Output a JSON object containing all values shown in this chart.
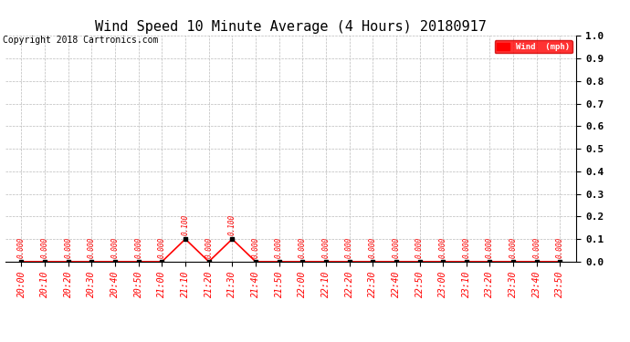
{
  "title": "Wind Speed 10 Minute Average (4 Hours) 20180917",
  "copyright": "Copyright 2018 Cartronics.com",
  "legend_label": "Wind  (mph)",
  "legend_bg": "#ff0000",
  "legend_fg": "#ffffff",
  "x_labels": [
    "20:00",
    "20:10",
    "20:20",
    "20:30",
    "20:40",
    "20:50",
    "21:00",
    "21:10",
    "21:20",
    "21:30",
    "21:40",
    "21:50",
    "22:00",
    "22:10",
    "22:20",
    "22:30",
    "22:40",
    "22:50",
    "23:00",
    "23:10",
    "23:20",
    "23:30",
    "23:40",
    "23:50"
  ],
  "y_values": [
    0.0,
    0.0,
    0.0,
    0.0,
    0.0,
    0.0,
    0.0,
    0.1,
    0.0,
    0.1,
    0.0,
    0.0,
    0.0,
    0.0,
    0.0,
    0.0,
    0.0,
    0.0,
    0.0,
    0.0,
    0.0,
    0.0,
    0.0,
    0.0
  ],
  "line_color": "#ff0000",
  "marker_color": "#000000",
  "annotation_color": "#ff0000",
  "ylim": [
    0.0,
    1.0
  ],
  "yticks": [
    0.0,
    0.1,
    0.2,
    0.3,
    0.4,
    0.5,
    0.6,
    0.7,
    0.8,
    0.9,
    1.0
  ],
  "ytick_labels": [
    "0.0",
    "0.1",
    "0.2",
    "0.3",
    "0.4",
    "0.5",
    "0.6",
    "0.7",
    "0.8",
    "0.9",
    "1.0"
  ],
  "grid_color": "#bbbbbb",
  "bg_color": "#ffffff",
  "title_fontsize": 11,
  "tick_fontsize": 7,
  "annotation_fontsize": 5.5,
  "copyright_fontsize": 7
}
